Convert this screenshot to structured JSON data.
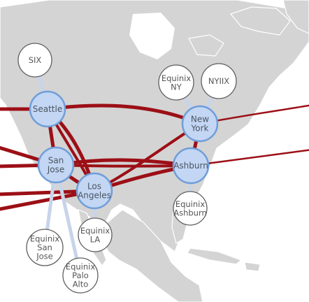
{
  "colors": {
    "land": "#d4d4d4",
    "sea": "#ffffff",
    "backbone": "#9c0f16",
    "pop_fill": "#c3d6f4",
    "pop_stroke": "#6f9ed9",
    "ix_fill": "#ffffff",
    "ix_stroke": "#5f5f5f",
    "ix_link": "#c7d4ea"
  },
  "pops": {
    "seattle": {
      "lines": [
        "Seattle"
      ]
    },
    "sanjose": {
      "lines": [
        "San",
        "Jose"
      ]
    },
    "losangeles": {
      "lines": [
        "Los",
        "Angeles"
      ]
    },
    "newyork": {
      "lines": [
        "New",
        "York"
      ]
    },
    "ashburn": {
      "lines": [
        "Ashburn"
      ]
    }
  },
  "exchanges": {
    "six": {
      "lines": [
        "SIX"
      ]
    },
    "equinix_ny": {
      "lines": [
        "Equinix",
        "NY"
      ]
    },
    "nyiix": {
      "lines": [
        "NYIIX"
      ]
    },
    "equinix_ashburn": {
      "lines": [
        "Equinix",
        "Ashburn"
      ]
    },
    "equinix_la": {
      "lines": [
        "Equinix",
        "LA"
      ]
    },
    "equinix_sanjose": {
      "lines": [
        "Equinix",
        "San",
        "Jose"
      ]
    },
    "equinix_paloalto": {
      "lines": [
        "Equinix",
        "Palo",
        "Alto"
      ]
    }
  }
}
